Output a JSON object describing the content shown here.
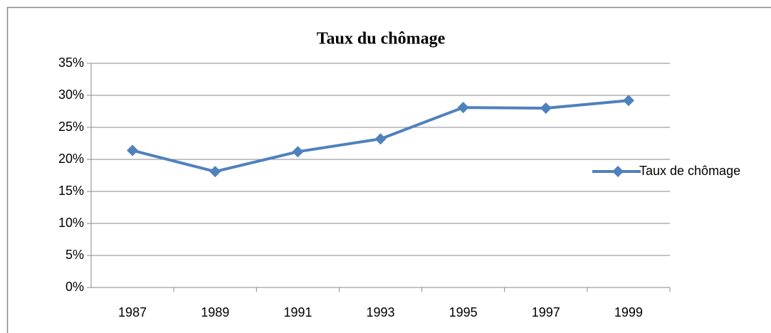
{
  "chart_data": {
    "type": "line",
    "title": "Taux du chômage",
    "categories": [
      "1987",
      "1989",
      "1991",
      "1993",
      "1995",
      "1997",
      "1999"
    ],
    "series": [
      {
        "name": "Taux de chômage",
        "color": "#4f81bd",
        "values": [
          21.4,
          18.1,
          21.2,
          23.2,
          28.1,
          28.0,
          29.2
        ]
      }
    ],
    "ylim": [
      0,
      35
    ],
    "yticks": [
      {
        "value": 0,
        "label": "0%"
      },
      {
        "value": 5,
        "label": "5%"
      },
      {
        "value": 10,
        "label": "10%"
      },
      {
        "value": 15,
        "label": "15%"
      },
      {
        "value": 20,
        "label": "20%"
      },
      {
        "value": 25,
        "label": "25%"
      },
      {
        "value": 30,
        "label": "30%"
      },
      {
        "value": 35,
        "label": "35%"
      }
    ],
    "grid": true,
    "legend": "right"
  }
}
